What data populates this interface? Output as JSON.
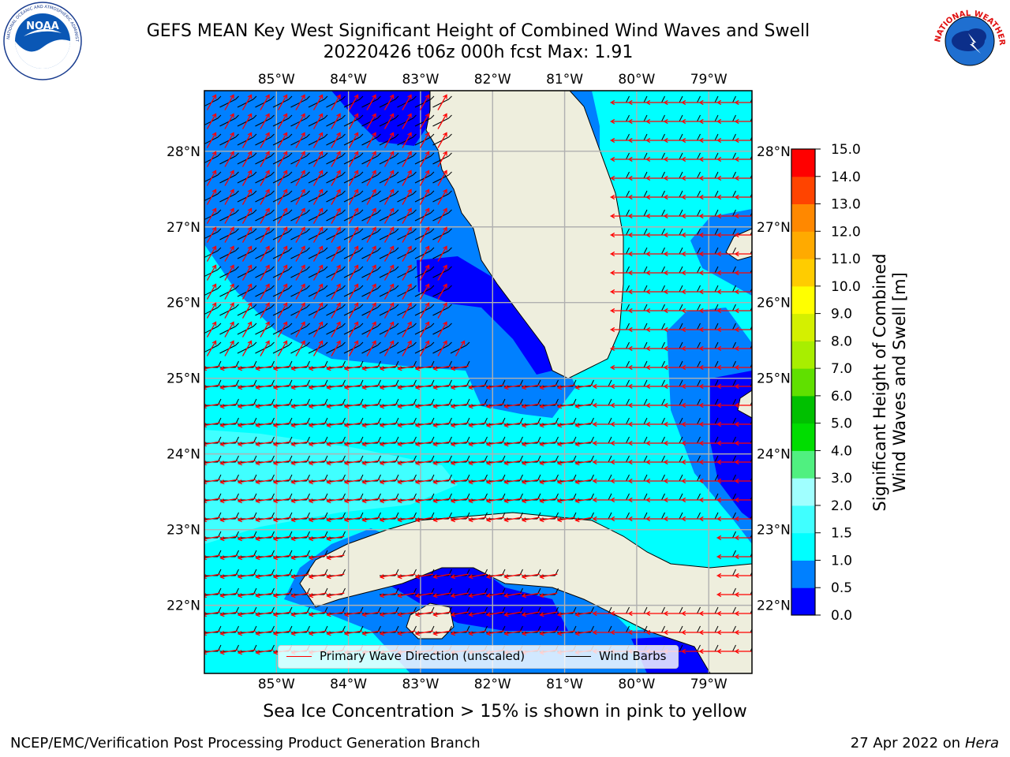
{
  "title": {
    "line1": "GEFS MEAN Key West Significant Height of Combined Wind Waves and Swell",
    "line2": "20220426 t06z 000h fcst   Max: 1.91"
  },
  "logos": {
    "left": {
      "name": "noaa-logo",
      "text": "NOAA",
      "ring_text": "NATIONAL OCEANIC AND ATMOSPHERIC ADMINISTRATION · U.S. DEPARTMENT OF COMMERCE"
    },
    "right": {
      "name": "nws-logo",
      "ring_text": "NATIONAL WEATHER SERVICE"
    }
  },
  "map": {
    "lon_ticks": [
      "85°W",
      "84°W",
      "83°W",
      "82°W",
      "81°W",
      "80°W",
      "79°W"
    ],
    "lat_ticks": [
      "28°N",
      "27°N",
      "26°N",
      "25°N",
      "24°N",
      "23°N",
      "22°N"
    ],
    "lon_range": [
      -86.0,
      -78.4
    ],
    "lat_range": [
      21.1,
      28.8
    ],
    "land_color": "#eeeedd",
    "grid_color": "#b0b0b0",
    "arrow_color": "#ff0000",
    "barb_color": "#000000"
  },
  "colorbar": {
    "levels": [
      "0.0",
      "0.5",
      "1.0",
      "1.5",
      "2.0",
      "3.0",
      "4.0",
      "5.0",
      "6.0",
      "7.0",
      "8.0",
      "9.0",
      "10.0",
      "11.0",
      "12.0",
      "13.0",
      "14.0",
      "15.0"
    ],
    "colors": [
      "#0000ff",
      "#0080ff",
      "#00ffff",
      "#40ffff",
      "#a0ffff",
      "#50f080",
      "#00dd00",
      "#00c000",
      "#60e000",
      "#a8ee00",
      "#d4f000",
      "#ffff00",
      "#ffcc00",
      "#ffaa00",
      "#ff8800",
      "#ff4400",
      "#ff0000"
    ],
    "label_line1": "Significant Height of Combined",
    "label_line2": "Wind Waves and Swell [m]"
  },
  "legend": {
    "wave_label": "Primary Wave Direction (unscaled)",
    "barb_label": "Wind Barbs",
    "wave_color": "#ff0000",
    "barb_color": "#000000"
  },
  "ice_note": "Sea Ice Concentration > 15% is shown in pink to yellow",
  "footer": {
    "left": "NCEP/EMC/Verification Post Processing Product Generation Branch",
    "right_date": "27 Apr 2022 on",
    "right_host": "Hera"
  }
}
